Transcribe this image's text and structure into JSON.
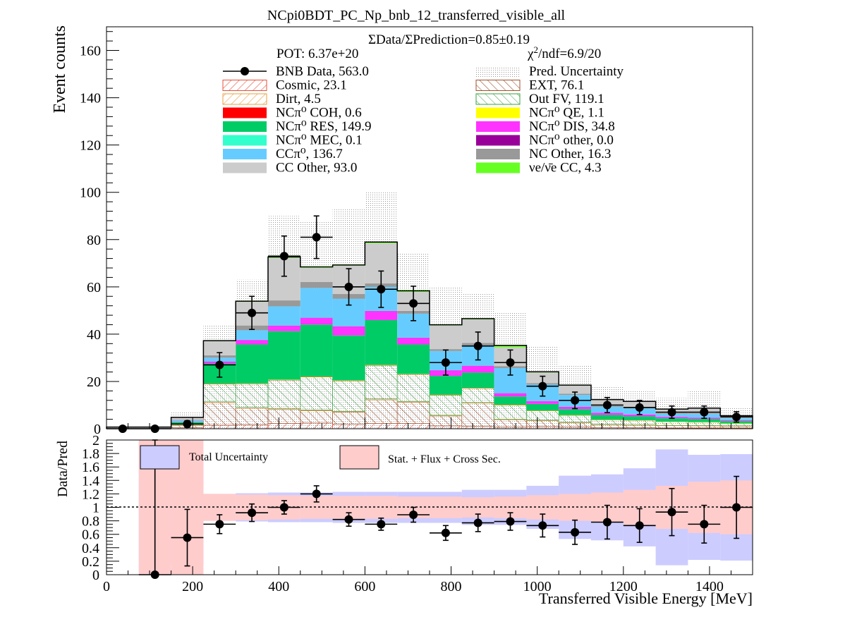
{
  "title": "NCpi0BDT_PC_Np_bnb_12_transferred_visible_all",
  "ratio_text": "ΣData/ΣPrediction=0.85±0.19",
  "pot_text": "POT: 6.37e+20",
  "chi2_text": "χ²/ndf=6.9/20",
  "colors": {
    "cosmic": "#e8503a",
    "ext": "#a0522d",
    "dirt": "#e8a040",
    "outfv": "#3aa040",
    "coh": "#ff0000",
    "qe": "#ffff00",
    "res": "#00cc66",
    "dis": "#ff33ff",
    "mec": "#33ffcc",
    "pi0other": "#990099",
    "cc1pi0": "#66ccff",
    "ncother": "#999999",
    "ccother": "#cccccc",
    "nue": "#66ff22",
    "total_unc": "#ccccff",
    "stat_unc": "#ffcccc"
  },
  "legend": [
    {
      "key": "data",
      "label": "BNB Data, 563.0"
    },
    {
      "key": "unc",
      "label": "Pred. Uncertainty"
    },
    {
      "key": "cosmic",
      "label": "Cosmic, 23.1"
    },
    {
      "key": "ext",
      "label": "EXT, 76.1"
    },
    {
      "key": "dirt",
      "label": "Dirt, 4.5"
    },
    {
      "key": "outfv",
      "label": "Out FV, 119.1"
    },
    {
      "key": "coh",
      "label": "NCπ⁰ COH,  0.6"
    },
    {
      "key": "qe",
      "label": "NCπ⁰ QE,  1.1"
    },
    {
      "key": "res",
      "label": "NCπ⁰ RES,  149.9"
    },
    {
      "key": "dis",
      "label": "NCπ⁰ DIS,  34.8"
    },
    {
      "key": "mec",
      "label": "NCπ⁰ MEC,  0.1"
    },
    {
      "key": "pi0other",
      "label": "NCπ⁰ other,  0.0"
    },
    {
      "key": "cc1pi0",
      "label": "CCπ⁰, 136.7"
    },
    {
      "key": "ncother",
      "label": "NC Other, 16.3"
    },
    {
      "key": "ccother",
      "label": "CC Other, 93.0"
    },
    {
      "key": "nue",
      "label": "νe/ν̄e CC, 4.3"
    }
  ],
  "ratio_legend": {
    "total": "Total Uncertainty",
    "stat": "Stat. + Flux + Cross Sec."
  },
  "chart_data": [
    {
      "type": "bar",
      "stacked": true,
      "title": "NCpi0BDT_PC_Np_bnb_12_transferred_visible_all",
      "xlabel": "Transferred Visible Energy [MeV]",
      "ylabel": "Event counts",
      "xlim": [
        0,
        1500
      ],
      "ylim": [
        0,
        170
      ],
      "yticks": [
        0,
        20,
        40,
        60,
        80,
        100,
        120,
        140,
        160
      ],
      "xticks": [
        0,
        200,
        400,
        600,
        800,
        1000,
        1200,
        1400
      ],
      "bin_edges": [
        0,
        75,
        150,
        225,
        300,
        375,
        450,
        525,
        600,
        675,
        750,
        825,
        900,
        975,
        1050,
        1125,
        1200,
        1275,
        1350,
        1425,
        1500
      ],
      "series": [
        {
          "name": "Cosmic",
          "key": "cosmic",
          "values": [
            0.05,
            0.05,
            0.4,
            1.5,
            1.6,
            2.2,
            2.4,
            2.0,
            2.2,
            2.2,
            1.2,
            1.0,
            0.8,
            0.9,
            0.7,
            0.5,
            0.4,
            0.3,
            0.3,
            0.3
          ]
        },
        {
          "name": "EXT",
          "key": "ext",
          "values": [
            0.1,
            0.1,
            1.0,
            9.5,
            7.0,
            6.0,
            5.2,
            5.0,
            10.0,
            9.0,
            4.2,
            9.8,
            3.0,
            2.5,
            1.8,
            1.2,
            1.1,
            1.0,
            0.9,
            0.8
          ]
        },
        {
          "name": "Dirt",
          "key": "dirt",
          "values": [
            0,
            0,
            0.1,
            0.4,
            0.4,
            0.4,
            0.3,
            0.3,
            0.4,
            0.3,
            0.3,
            0.3,
            0.2,
            0.2,
            0.2,
            0.1,
            0.1,
            0.1,
            0.1,
            0.1
          ]
        },
        {
          "name": "Out FV",
          "key": "outfv",
          "values": [
            0.05,
            0.05,
            0.5,
            7.5,
            10.0,
            12.0,
            14.0,
            13.0,
            14.2,
            11.5,
            8.5,
            6.0,
            6.0,
            4.0,
            3.0,
            2.0,
            2.0,
            1.6,
            1.5,
            1.0
          ]
        },
        {
          "name": "NCπ⁰ COH",
          "key": "coh",
          "values": [
            0,
            0,
            0,
            0.05,
            0.05,
            0.05,
            0.05,
            0.05,
            0.05,
            0.05,
            0.05,
            0.05,
            0.05,
            0.02,
            0.02,
            0.02,
            0.02,
            0.01,
            0.01,
            0.01
          ]
        },
        {
          "name": "NCπ⁰ QE",
          "key": "qe",
          "values": [
            0,
            0,
            0,
            0.1,
            0.1,
            0.1,
            0.1,
            0.1,
            0.1,
            0.1,
            0.1,
            0.1,
            0.1,
            0.05,
            0.05,
            0.02,
            0.02,
            0.01,
            0.01,
            0.01
          ]
        },
        {
          "name": "NCπ⁰ RES",
          "key": "res",
          "values": [
            0,
            0,
            0.8,
            8.5,
            16.5,
            20.5,
            22.0,
            19.0,
            19.0,
            12.5,
            8.0,
            6.5,
            3.5,
            2.8,
            2.5,
            2.0,
            1.6,
            1.4,
            1.3,
            1.0
          ]
        },
        {
          "name": "NCπ⁰ DIS",
          "key": "dis",
          "values": [
            0,
            0,
            0.1,
            1.0,
            2.0,
            2.5,
            3.0,
            4.0,
            4.0,
            3.0,
            2.5,
            3.0,
            1.5,
            1.2,
            1.0,
            0.9,
            0.8,
            0.6,
            0.6,
            0.4
          ]
        },
        {
          "name": "NCπ⁰ MEC",
          "key": "mec",
          "values": [
            0,
            0,
            0,
            0.01,
            0.01,
            0.01,
            0.01,
            0.01,
            0.01,
            0.01,
            0.01,
            0.01,
            0.01,
            0,
            0,
            0,
            0,
            0,
            0,
            0
          ]
        },
        {
          "name": "NCπ⁰ other",
          "key": "pi0other",
          "values": [
            0,
            0,
            0,
            0,
            0,
            0,
            0,
            0,
            0,
            0,
            0,
            0,
            0,
            0,
            0,
            0,
            0,
            0,
            0,
            0
          ]
        },
        {
          "name": "CCπ⁰",
          "key": "cc1pi0",
          "values": [
            0.1,
            0.1,
            0.6,
            1.5,
            4.0,
            8.0,
            12.5,
            11.5,
            10.0,
            10.0,
            8.0,
            8.5,
            10.5,
            7.0,
            5.0,
            2.5,
            2.5,
            1.3,
            1.5,
            0.8
          ]
        },
        {
          "name": "NC Other",
          "key": "ncother",
          "values": [
            0.1,
            0.1,
            0.3,
            1.0,
            2.0,
            2.5,
            2.5,
            2.0,
            1.5,
            1.2,
            0.8,
            1.0,
            0.8,
            0.6,
            0.5,
            0.4,
            0.3,
            0.3,
            0.3,
            0.2
          ]
        },
        {
          "name": "CC Other",
          "key": "ccother",
          "values": [
            0.3,
            0.3,
            1.0,
            6.0,
            10.0,
            18.0,
            6.0,
            12.0,
            17.0,
            8.0,
            10.0,
            10.0,
            8.0,
            4.5,
            3.5,
            2.5,
            2.5,
            1.5,
            2.0,
            0.8
          ]
        },
        {
          "name": "νe/ν̄e CC",
          "key": "nue",
          "values": [
            0,
            0,
            0,
            0.2,
            0.3,
            0.4,
            0.4,
            0.3,
            0.5,
            0.5,
            0.3,
            0.3,
            0.8,
            0.3,
            0.2,
            0.2,
            0.2,
            0.2,
            0.2,
            0.1
          ]
        }
      ],
      "uncertainty_upper": [
        1.0,
        1.0,
        7.0,
        44.0,
        63.0,
        90.0,
        88.0,
        93.0,
        100.0,
        74.0,
        60.0,
        57.0,
        49.0,
        35.0,
        27.0,
        18.0,
        16.0,
        13.0,
        16.0,
        9.0
      ],
      "data": {
        "name": "BNB Data",
        "x": [
          37.5,
          112.5,
          187.5,
          262.5,
          337.5,
          412.5,
          487.5,
          562.5,
          637.5,
          712.5,
          787.5,
          862.5,
          937.5,
          1012.5,
          1087.5,
          1162.5,
          1237.5,
          1312.5,
          1387.5,
          1462.5
        ],
        "y": [
          0,
          0,
          2,
          27,
          49,
          73,
          81,
          60,
          59,
          53,
          28,
          35,
          28,
          18,
          12,
          10,
          9,
          7,
          7,
          5
        ],
        "yerr": [
          0,
          0,
          1.4,
          5.2,
          7.0,
          8.5,
          9.0,
          7.7,
          7.7,
          7.3,
          5.3,
          5.9,
          5.3,
          4.2,
          3.5,
          3.2,
          3.0,
          2.6,
          2.6,
          2.2
        ]
      }
    },
    {
      "type": "bar",
      "xlabel": "Transferred Visible Energy [MeV]",
      "ylabel": "Data/Pred",
      "xlim": [
        0,
        1500
      ],
      "ylim": [
        0,
        2
      ],
      "yticks": [
        0,
        0.2,
        0.4,
        0.6,
        0.8,
        1,
        1.2,
        1.4,
        1.6,
        1.8,
        2
      ],
      "reference_line": 1,
      "bin_edges": [
        0,
        75,
        150,
        225,
        300,
        375,
        450,
        525,
        600,
        675,
        750,
        825,
        900,
        975,
        1050,
        1125,
        1200,
        1275,
        1350,
        1425,
        1500
      ],
      "total_uncertainty": {
        "low": [
          1,
          0.03,
          0.16,
          0.8,
          0.79,
          0.78,
          0.78,
          0.77,
          0.77,
          0.77,
          0.77,
          0.74,
          0.74,
          0.68,
          0.53,
          0.51,
          0.42,
          0.14,
          0.22,
          0.21
        ],
        "high": [
          1,
          1.97,
          1.84,
          1.2,
          1.21,
          1.22,
          1.22,
          1.23,
          1.23,
          1.23,
          1.23,
          1.26,
          1.26,
          1.32,
          1.47,
          1.49,
          1.58,
          1.86,
          1.78,
          1.79
        ]
      },
      "stat_flux_xsec": {
        "low": [
          1,
          0,
          0,
          0.8,
          0.81,
          0.82,
          0.83,
          0.83,
          0.83,
          0.84,
          0.84,
          0.85,
          0.84,
          0.82,
          0.8,
          0.78,
          0.74,
          0.68,
          0.62,
          0.6
        ],
        "high": [
          1,
          2,
          2,
          1.2,
          1.19,
          1.18,
          1.17,
          1.17,
          1.17,
          1.16,
          1.16,
          1.15,
          1.16,
          1.18,
          1.2,
          1.22,
          1.26,
          1.32,
          1.38,
          1.4
        ]
      },
      "data": {
        "x": [
          37.5,
          112.5,
          187.5,
          262.5,
          337.5,
          412.5,
          487.5,
          562.5,
          637.5,
          712.5,
          787.5,
          862.5,
          937.5,
          1012.5,
          1087.5,
          1162.5,
          1237.5,
          1312.5,
          1387.5,
          1462.5
        ],
        "y": [
          null,
          0,
          0.55,
          0.75,
          0.92,
          1.0,
          1.2,
          0.82,
          0.75,
          0.89,
          0.62,
          0.77,
          0.79,
          0.73,
          0.63,
          0.78,
          0.73,
          0.93,
          0.75,
          1.0
        ],
        "yerr": [
          null,
          2,
          0.42,
          0.14,
          0.13,
          0.1,
          0.12,
          0.1,
          0.09,
          0.11,
          0.11,
          0.13,
          0.13,
          0.17,
          0.18,
          0.25,
          0.25,
          0.35,
          0.28,
          0.46
        ]
      }
    }
  ]
}
